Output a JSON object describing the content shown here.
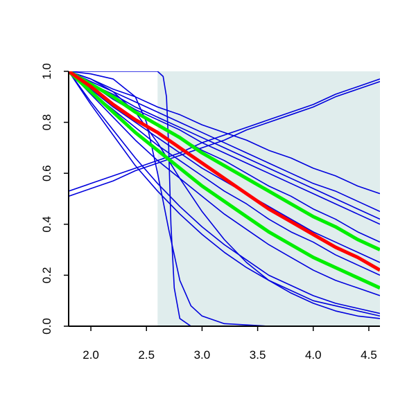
{
  "chart_data": {
    "type": "line",
    "x": [
      1.8,
      2.0,
      2.2,
      2.4,
      2.6,
      2.8,
      3.0,
      3.2,
      3.4,
      3.6,
      3.8,
      4.0,
      4.2,
      4.4,
      4.6
    ],
    "xlim": [
      1.8,
      4.6
    ],
    "ylim": [
      0,
      1
    ],
    "xticks": [
      {
        "value": 2,
        "label": "2.0"
      },
      2.5,
      {
        "value": 3,
        "label": "3.0"
      },
      3.5,
      {
        "value": 4,
        "label": "4.0"
      },
      4.5
    ],
    "yticks": [
      {
        "value": 0,
        "label": "0.0"
      },
      0.2,
      0.4,
      0.6,
      0.8,
      {
        "value": 1,
        "label": "1.0"
      }
    ],
    "shade": {
      "xlim": [
        2.6,
        4.6
      ],
      "color": "#e0eded"
    },
    "series": [
      {
        "color": "#0000dd",
        "values": [
          1,
          0.97,
          0.93,
          0.9,
          0.86,
          0.83,
          0.79,
          0.76,
          0.73,
          0.69,
          0.66,
          0.62,
          0.59,
          0.55,
          0.52
        ]
      },
      {
        "color": "#0000dd",
        "values": [
          1,
          0.96,
          0.92,
          0.88,
          0.84,
          0.8,
          0.76,
          0.72,
          0.68,
          0.64,
          0.6,
          0.56,
          0.53,
          0.49,
          0.45
        ]
      },
      {
        "color": "#0000dd",
        "values": [
          1,
          0.95,
          0.91,
          0.86,
          0.82,
          0.78,
          0.74,
          0.7,
          0.66,
          0.62,
          0.58,
          0.54,
          0.5,
          0.46,
          0.42
        ]
      },
      {
        "color": "#0000dd",
        "values": [
          1,
          0.95,
          0.9,
          0.85,
          0.81,
          0.77,
          0.72,
          0.68,
          0.64,
          0.6,
          0.56,
          0.52,
          0.48,
          0.44,
          0.4
        ]
      },
      {
        "color": "#0000dd",
        "values": [
          1,
          0.95,
          0.89,
          0.84,
          0.79,
          0.74,
          0.69,
          0.65,
          0.6,
          0.55,
          0.51,
          0.46,
          0.42,
          0.37,
          0.33
        ]
      },
      {
        "color": "#0000dd",
        "values": [
          1,
          0.93,
          0.86,
          0.8,
          0.74,
          0.68,
          0.62,
          0.57,
          0.52,
          0.47,
          0.42,
          0.37,
          0.33,
          0.29,
          0.25
        ]
      },
      {
        "color": "#0000dd",
        "values": [
          1,
          0.92,
          0.85,
          0.78,
          0.71,
          0.65,
          0.59,
          0.53,
          0.48,
          0.42,
          0.37,
          0.33,
          0.28,
          0.24,
          0.2
        ]
      },
      {
        "color": "#0000dd",
        "values": [
          1,
          0.91,
          0.82,
          0.73,
          0.65,
          0.58,
          0.51,
          0.44,
          0.38,
          0.32,
          0.27,
          0.22,
          0.18,
          0.15,
          0.12
        ]
      },
      {
        "color": "#0000dd",
        "values": [
          1,
          0.88,
          0.77,
          0.66,
          0.56,
          0.47,
          0.39,
          0.32,
          0.26,
          0.2,
          0.16,
          0.12,
          0.09,
          0.07,
          0.05
        ]
      },
      {
        "color": "#0000dd",
        "values": [
          1,
          0.87,
          0.75,
          0.63,
          0.53,
          0.44,
          0.36,
          0.29,
          0.23,
          0.18,
          0.14,
          0.1,
          0.08,
          0.06,
          0.04
        ]
      },
      {
        "color": "#0000dd",
        "values": [
          1,
          0.97,
          0.92,
          0.84,
          0.72,
          0.58,
          0.45,
          0.34,
          0.25,
          0.18,
          0.13,
          0.09,
          0.06,
          0.04,
          0.03
        ]
      },
      {
        "color": "#0000dd",
        "values": [
          0.53,
          0.56,
          0.59,
          0.62,
          0.65,
          0.68,
          0.72,
          0.75,
          0.78,
          0.81,
          0.84,
          0.87,
          0.91,
          0.94,
          0.97
        ]
      },
      {
        "color": "#0000dd",
        "values": [
          0.51,
          0.54,
          0.57,
          0.61,
          0.64,
          0.67,
          0.7,
          0.73,
          0.77,
          0.8,
          0.83,
          0.86,
          0.9,
          0.93,
          0.96
        ]
      },
      {
        "color": "#0000dd",
        "x": [
          1.8,
          2.4,
          2.6,
          2.65,
          2.68,
          2.7,
          2.72,
          2.75,
          2.8,
          2.9,
          4.6
        ],
        "values": [
          1,
          1,
          1,
          0.98,
          0.9,
          0.7,
          0.4,
          0.15,
          0.03,
          0,
          0
        ]
      },
      {
        "color": "#0000dd",
        "x": [
          1.8,
          2.0,
          2.2,
          2.4,
          2.5,
          2.6,
          2.7,
          2.8,
          2.9,
          3.0,
          3.2,
          3.6,
          4.6
        ],
        "values": [
          1,
          0.99,
          0.97,
          0.9,
          0.8,
          0.6,
          0.38,
          0.18,
          0.08,
          0.04,
          0.01,
          0,
          0
        ]
      },
      {
        "color": "#00ee00",
        "values": [
          1,
          0.95,
          0.9,
          0.84,
          0.79,
          0.74,
          0.68,
          0.63,
          0.58,
          0.53,
          0.48,
          0.43,
          0.39,
          0.34,
          0.3
        ]
      },
      {
        "color": "#00ee00",
        "values": [
          1,
          0.92,
          0.84,
          0.76,
          0.69,
          0.62,
          0.55,
          0.49,
          0.43,
          0.37,
          0.32,
          0.27,
          0.23,
          0.19,
          0.15
        ]
      },
      {
        "color": "#ff0000",
        "values": [
          1,
          0.94,
          0.87,
          0.81,
          0.76,
          0.7,
          0.64,
          0.58,
          0.52,
          0.46,
          0.41,
          0.36,
          0.31,
          0.27,
          0.22
        ]
      }
    ]
  }
}
